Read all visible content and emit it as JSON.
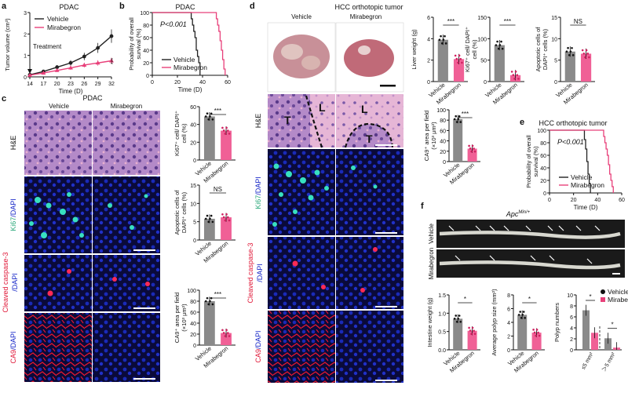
{
  "colors": {
    "vehicle": "#222222",
    "mirabegron": "#e8407a",
    "veh_bar": "#8a8a8a",
    "mir_bar": "#f06096",
    "ki67": "#38e0c0",
    "casp": "#ff2a55",
    "ca9": "#ff1030",
    "dapi": "#1828c8"
  },
  "labels": {
    "vehicle": "Vehicle",
    "mirabegron": "Mirabegron",
    "he": "H&E",
    "ki67": "Ki67",
    "dapi": "/DAPI",
    "casp": "Cleaved caspase-3",
    "ca9": "CA9",
    "T": "T",
    "L": "L"
  },
  "panel_a": {
    "letter": "a",
    "title": "PDAC",
    "ylabel": "Tumor volume (cm³)",
    "xlabel": "Time (D)",
    "treatment": "Treatment",
    "sig": "***",
    "chart_data": {
      "type": "line",
      "x": [
        14,
        17,
        20,
        23,
        26,
        29,
        32
      ],
      "xticks": [
        "14",
        "17",
        "20",
        "23",
        "26",
        "29",
        "32"
      ],
      "yticks": [
        "0",
        "1",
        "2",
        "3"
      ],
      "ylim": [
        0,
        3
      ],
      "series": [
        {
          "name": "Vehicle",
          "values": [
            0.1,
            0.25,
            0.45,
            0.65,
            0.95,
            1.35,
            1.9
          ]
        },
        {
          "name": "Mirabegron",
          "values": [
            0.08,
            0.18,
            0.3,
            0.42,
            0.55,
            0.65,
            0.75
          ]
        }
      ]
    }
  },
  "panel_b": {
    "letter": "b",
    "title": "PDAC",
    "ylabel": "Probability of overall survival (%)",
    "xlabel": "Time (D)",
    "pval": "P<0.001",
    "chart_data": {
      "type": "line",
      "xticks": [
        "0",
        "20",
        "40",
        "60"
      ],
      "yticks": [
        "0",
        "20",
        "40",
        "60",
        "80",
        "100"
      ],
      "xlim": [
        0,
        60
      ],
      "ylim": [
        0,
        100
      ],
      "series": [
        {
          "name": "Vehicle",
          "x": [
            0,
            30,
            31,
            32,
            33,
            34,
            35,
            36,
            37,
            38
          ],
          "values": [
            100,
            100,
            90,
            80,
            70,
            60,
            40,
            30,
            20,
            0
          ]
        },
        {
          "name": "Mirabegron",
          "x": [
            0,
            50,
            51,
            52,
            53,
            54,
            55,
            56,
            57,
            58
          ],
          "values": [
            100,
            100,
            90,
            80,
            70,
            55,
            40,
            25,
            10,
            0
          ]
        }
      ]
    }
  },
  "panel_c": {
    "letter": "c",
    "title": "PDAC",
    "charts": [
      {
        "ylabel": "Ki67⁺ cell/ DAPI⁺ cell (%)",
        "sig": "***",
        "chart_data": {
          "type": "bar",
          "categories": [
            "Vehicle",
            "Mirabegron"
          ],
          "values": [
            49,
            33
          ],
          "ylim": [
            0,
            60
          ],
          "yticks": [
            "0",
            "20",
            "40",
            "60"
          ]
        }
      },
      {
        "ylabel": "Apoptotic cells of DAPI⁺ cells (%)",
        "sig": "NS",
        "chart_data": {
          "type": "bar",
          "categories": [
            "Vehicle",
            "Mirabegron"
          ],
          "values": [
            5.8,
            6.2
          ],
          "ylim": [
            0,
            15
          ],
          "yticks": [
            "0",
            "5",
            "10",
            "15"
          ]
        }
      },
      {
        "ylabel": "CA9⁺ area per field (×10³ μm²)",
        "sig": "***",
        "chart_data": {
          "type": "bar",
          "categories": [
            "Vehicle",
            "Mirabegron"
          ],
          "values": [
            80,
            22
          ],
          "ylim": [
            0,
            100
          ],
          "yticks": [
            "0",
            "20",
            "40",
            "60",
            "80",
            "100"
          ]
        }
      }
    ]
  },
  "panel_d": {
    "letter": "d",
    "title": "HCC orthotopic tumor",
    "charts": [
      {
        "ylabel": "Liver weight (g)",
        "sig": "***",
        "chart_data": {
          "type": "bar",
          "categories": [
            "Vehicle",
            "Mirabegron"
          ],
          "values": [
            3.9,
            2.1
          ],
          "ylim": [
            0,
            6
          ],
          "yticks": [
            "0",
            "2",
            "4",
            "6"
          ]
        }
      },
      {
        "ylabel": "Ki67⁺ cell/ DAPI⁺ cell (%)",
        "sig": "***",
        "chart_data": {
          "type": "bar",
          "categories": [
            "Vehicle",
            "Mirabegron"
          ],
          "values": [
            85,
            15
          ],
          "ylim": [
            0,
            150
          ],
          "yticks": [
            "0",
            "50",
            "100",
            "150"
          ]
        }
      },
      {
        "ylabel": "Apoptotic cells of DAPI⁺ cells (%)",
        "sig": "NS",
        "chart_data": {
          "type": "bar",
          "categories": [
            "Vehicle",
            "Mirabegron"
          ],
          "values": [
            7,
            6.5
          ],
          "ylim": [
            0,
            15
          ],
          "yticks": [
            "0",
            "5",
            "10",
            "15"
          ]
        }
      },
      {
        "ylabel": "CA9⁺ area per field (×10³ μm²)",
        "sig": "***",
        "chart_data": {
          "type": "bar",
          "categories": [
            "Vehicle",
            "Mirabegron"
          ],
          "values": [
            82,
            25
          ],
          "ylim": [
            0,
            100
          ],
          "yticks": [
            "0",
            "20",
            "40",
            "60",
            "80",
            "100"
          ]
        }
      }
    ]
  },
  "panel_e": {
    "letter": "e",
    "title": "HCC orthotopic tumor",
    "ylabel": "Probability of overall survival (%)",
    "xlabel": "Time (D)",
    "pval": "P<0.001",
    "chart_data": {
      "type": "line",
      "xticks": [
        "0",
        "20",
        "40",
        "60"
      ],
      "yticks": [
        "0",
        "20",
        "40",
        "60",
        "80",
        "100"
      ],
      "xlim": [
        0,
        60
      ],
      "ylim": [
        0,
        100
      ],
      "series": [
        {
          "name": "Vehicle",
          "x": [
            0,
            28,
            29,
            30,
            31,
            32,
            33,
            34
          ],
          "values": [
            100,
            100,
            85,
            70,
            50,
            30,
            15,
            0
          ]
        },
        {
          "name": "Mirabegron",
          "x": [
            0,
            44,
            45,
            46,
            47,
            48,
            49,
            50,
            51,
            52,
            53
          ],
          "values": [
            100,
            100,
            90,
            80,
            70,
            60,
            45,
            30,
            20,
            10,
            0
          ]
        }
      ]
    }
  },
  "panel_f": {
    "letter": "f",
    "title": "Apc",
    "title_sup": "Min/+",
    "legend": [
      "Vehicle",
      "Mirabegron"
    ],
    "charts": [
      {
        "ylabel": "Intestine weight (g)",
        "sig": "*",
        "chart_data": {
          "type": "bar",
          "categories": [
            "Vehicle",
            "Mirabegron"
          ],
          "values": [
            0.85,
            0.52
          ],
          "ylim": [
            0,
            1.5
          ],
          "yticks": [
            "0.0",
            "0.5",
            "1.0",
            "1.5"
          ]
        }
      },
      {
        "ylabel": "Average polyp size (mm²)",
        "sig": "*",
        "chart_data": {
          "type": "bar",
          "categories": [
            "Vehicle",
            "Mirabegron"
          ],
          "values": [
            5.1,
            2.5
          ],
          "ylim": [
            0,
            8
          ],
          "yticks": [
            "0",
            "2",
            "4",
            "6",
            "8"
          ]
        }
      },
      {
        "ylabel": "Polyp numbers",
        "sig": "*",
        "groups": [
          "≤5 mm²",
          "＞5 mm²"
        ],
        "chart_data": {
          "type": "bar",
          "categories": [
            "≤5 mm²",
            "＞5 mm²"
          ],
          "series": [
            {
              "name": "Vehicle",
              "values": [
                7.2,
                2.1
              ]
            },
            {
              "name": "Mirabegron",
              "values": [
                3.1,
                0.4
              ]
            }
          ],
          "ylim": [
            0,
            10
          ],
          "yticks": [
            "0",
            "2",
            "4",
            "6",
            "8",
            "10"
          ]
        }
      }
    ]
  }
}
